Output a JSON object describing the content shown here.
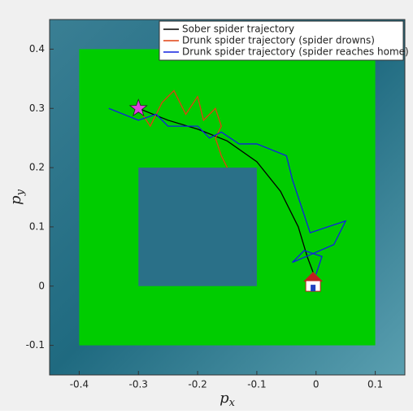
{
  "chart_data": {
    "type": "line",
    "xlabel": {
      "base": "p",
      "sub": "x"
    },
    "ylabel": {
      "base": "p",
      "sub": "y"
    },
    "xlim": [
      -0.45,
      0.15
    ],
    "ylim": [
      -0.15,
      0.45
    ],
    "xticks": [
      -0.4,
      -0.3,
      -0.2,
      -0.1,
      0,
      0.1
    ],
    "yticks": [
      -0.1,
      0,
      0.1,
      0.2,
      0.3,
      0.4
    ],
    "regions": [
      {
        "color": "#00cc00",
        "x": [
          -0.4,
          0.1
        ],
        "y": [
          -0.1,
          0.4
        ]
      },
      {
        "color": "#2a7088",
        "x": [
          -0.3,
          -0.1
        ],
        "y": [
          0,
          0.2
        ]
      }
    ],
    "start": {
      "x": -0.3,
      "y": 0.3,
      "color": "#e040e0"
    },
    "home": {
      "x": -0.005,
      "y": 0.005
    },
    "legend": "top-right",
    "series": [
      {
        "name": "Sober spider trajectory",
        "color": "#000000",
        "x": [
          -0.3,
          -0.25,
          -0.2,
          -0.15,
          -0.1,
          -0.06,
          -0.03,
          -0.015,
          0
        ],
        "values": [
          0.3,
          0.28,
          0.265,
          0.245,
          0.21,
          0.16,
          0.1,
          0.05,
          0.01
        ]
      },
      {
        "name": "Drunk spider trajectory (spider drowns)",
        "color": "#e04010",
        "x": [
          -0.3,
          -0.28,
          -0.26,
          -0.24,
          -0.22,
          -0.2,
          -0.19,
          -0.17,
          -0.16,
          -0.17,
          -0.16,
          -0.15
        ],
        "values": [
          0.3,
          0.27,
          0.31,
          0.33,
          0.29,
          0.32,
          0.28,
          0.3,
          0.27,
          0.25,
          0.22,
          0.2
        ]
      },
      {
        "name": "Drunk spider trajectory (spider reaches home)",
        "color": "#1020e0",
        "x": [
          -0.35,
          -0.3,
          -0.27,
          -0.25,
          -0.2,
          -0.18,
          -0.16,
          -0.13,
          -0.1,
          -0.05,
          -0.04,
          -0.03,
          -0.01,
          0.02,
          0.05,
          0.03,
          -0.04,
          -0.02,
          0.01,
          0
        ],
        "values": [
          0.3,
          0.28,
          0.29,
          0.27,
          0.27,
          0.25,
          0.26,
          0.24,
          0.24,
          0.22,
          0.18,
          0.15,
          0.09,
          0.1,
          0.11,
          0.07,
          0.04,
          0.06,
          0.05,
          0.02
        ]
      }
    ]
  }
}
